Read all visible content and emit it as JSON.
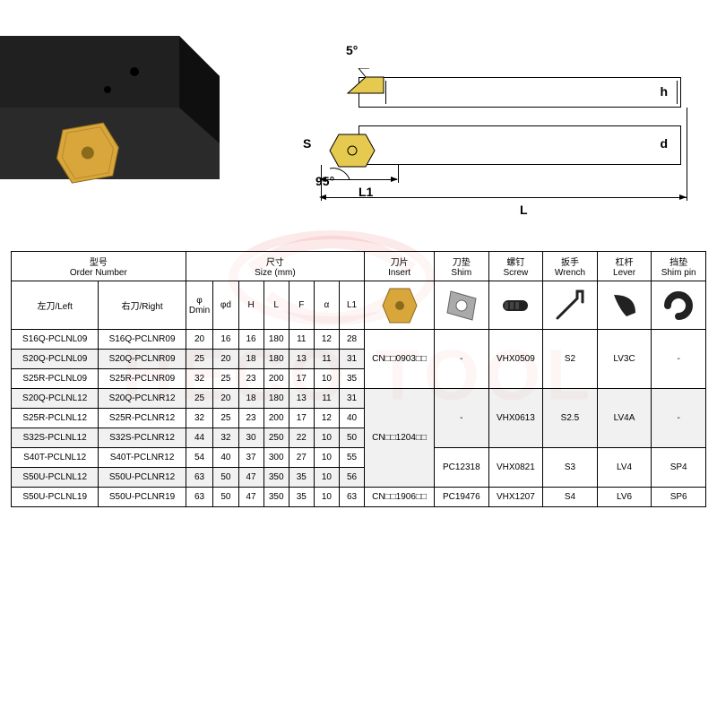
{
  "watermark_text": "HECO TOOL",
  "diagram": {
    "angle_top": "5°",
    "angle_bottom": "95°",
    "label_h": "h",
    "label_d": "d",
    "label_L": "L",
    "label_L1": "L1",
    "label_S": "S",
    "insert_color": "#e6b800",
    "body_color": "#1a1a1a"
  },
  "headers": {
    "order_cn": "型号",
    "order_en": "Order Number",
    "left_cn": "左刀/Left",
    "right_cn": "右刀/Right",
    "size_cn": "尺寸",
    "size_en": "Size (mm)",
    "phi_dmin": "φ Dmin",
    "phi_d": "φd",
    "H": "H",
    "L": "L",
    "F": "F",
    "alpha": "α",
    "L1": "L1",
    "insert_cn": "刀片",
    "insert_en": "Insert",
    "shim_cn": "刀垫",
    "shim_en": "Shim",
    "screw_cn": "螺钉",
    "screw_en": "Screw",
    "wrench_cn": "扳手",
    "wrench_en": "Wrench",
    "lever_cn": "杠杆",
    "lever_en": "Lever",
    "shimpin_cn": "挡垫",
    "shimpin_en": "Shim pin"
  },
  "rows": [
    {
      "left": "S16Q-PCLNL09",
      "right": "S16Q-PCLNR09",
      "dmin": "20",
      "d": "16",
      "H": "16",
      "L": "180",
      "F": "11",
      "a": "12",
      "L1": "28",
      "shade": false
    },
    {
      "left": "S20Q-PCLNL09",
      "right": "S20Q-PCLNR09",
      "dmin": "25",
      "d": "20",
      "H": "18",
      "L": "180",
      "F": "13",
      "a": "11",
      "L1": "31",
      "shade": true
    },
    {
      "left": "S25R-PCLNL09",
      "right": "S25R-PCLNR09",
      "dmin": "32",
      "d": "25",
      "H": "23",
      "L": "200",
      "F": "17",
      "a": "10",
      "L1": "35",
      "shade": false
    },
    {
      "left": "S20Q-PCLNL12",
      "right": "S20Q-PCLNR12",
      "dmin": "25",
      "d": "20",
      "H": "18",
      "L": "180",
      "F": "13",
      "a": "11",
      "L1": "31",
      "shade": true
    },
    {
      "left": "S25R-PCLNL12",
      "right": "S25R-PCLNR12",
      "dmin": "32",
      "d": "25",
      "H": "23",
      "L": "200",
      "F": "17",
      "a": "12",
      "L1": "40",
      "shade": false
    },
    {
      "left": "S32S-PCLNL12",
      "right": "S32S-PCLNR12",
      "dmin": "44",
      "d": "32",
      "H": "30",
      "L": "250",
      "F": "22",
      "a": "10",
      "L1": "50",
      "shade": true
    },
    {
      "left": "S40T-PCLNL12",
      "right": "S40T-PCLNR12",
      "dmin": "54",
      "d": "40",
      "H": "37",
      "L": "300",
      "F": "27",
      "a": "10",
      "L1": "55",
      "shade": false
    },
    {
      "left": "S50U-PCLNL12",
      "right": "S50U-PCLNR12",
      "dmin": "63",
      "d": "50",
      "H": "47",
      "L": "350",
      "F": "35",
      "a": "10",
      "L1": "56",
      "shade": true
    },
    {
      "left": "S50U-PCLNL19",
      "right": "S50U-PCLNR19",
      "dmin": "63",
      "d": "50",
      "H": "47",
      "L": "350",
      "F": "35",
      "a": "10",
      "L1": "63",
      "shade": false
    }
  ],
  "groups": {
    "insert": [
      "CN□□0903□□",
      "CN□□1204□□",
      "CN□□1906□□"
    ],
    "shim": [
      "-",
      "-",
      "PC12318",
      "PC19476"
    ],
    "screw": [
      "VHX0509",
      "VHX0613",
      "VHX0821",
      "VHX1207"
    ],
    "wrench": [
      "S2",
      "S2.5",
      "S3",
      "S4"
    ],
    "lever": [
      "LV3C",
      "LV4A",
      "LV4",
      "LV6"
    ],
    "shimpin": [
      "-",
      "-",
      "SP4",
      "SP6"
    ]
  },
  "colors": {
    "border": "#000000",
    "shade_bg": "rgba(200,200,200,0.25)",
    "insert_gold": "#d9a63b",
    "metal_gray": "#8a8a8a",
    "black_part": "#222222"
  }
}
